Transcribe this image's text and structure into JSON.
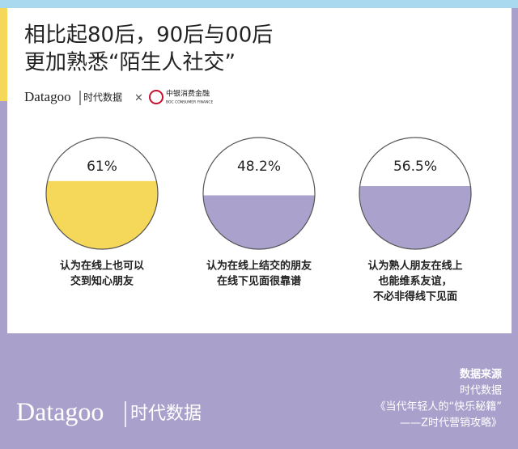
{
  "header": {
    "title_lines": [
      "相比起80后，90后与00后",
      "更加熟悉“陌生人社交”"
    ],
    "brand": "Datagoo",
    "brand_cn": "时代数据",
    "cross": "×",
    "partner_cn": "中银消费金融",
    "partner_en": "BOC CONSUMER FINANCE"
  },
  "chart_data": {
    "type": "fill-circle",
    "categories": [
      [
        "认为在线上也可以",
        "交到知心朋友"
      ],
      [
        "认为在线上结交的朋友",
        "在线下见面很靠谱"
      ],
      [
        "认为熟人朋友在线上",
        "也能维系友谊，",
        "不必非得线下见面"
      ]
    ],
    "values": [
      61,
      48.2,
      56.5
    ],
    "value_labels": [
      "61%",
      "48.2%",
      "56.5%"
    ],
    "colors": [
      "#f5d85a",
      "#aaa2cc",
      "#aaa2cc"
    ],
    "ylim": [
      0,
      100
    ]
  },
  "footer": {
    "source_heading": "数据来源",
    "source_lines": [
      "时代数据",
      "《当代年轻人的“快乐秘籍”",
      "——Z时代营销攻略》"
    ],
    "brand": "Datagoo",
    "brand_cn": "时代数据"
  }
}
